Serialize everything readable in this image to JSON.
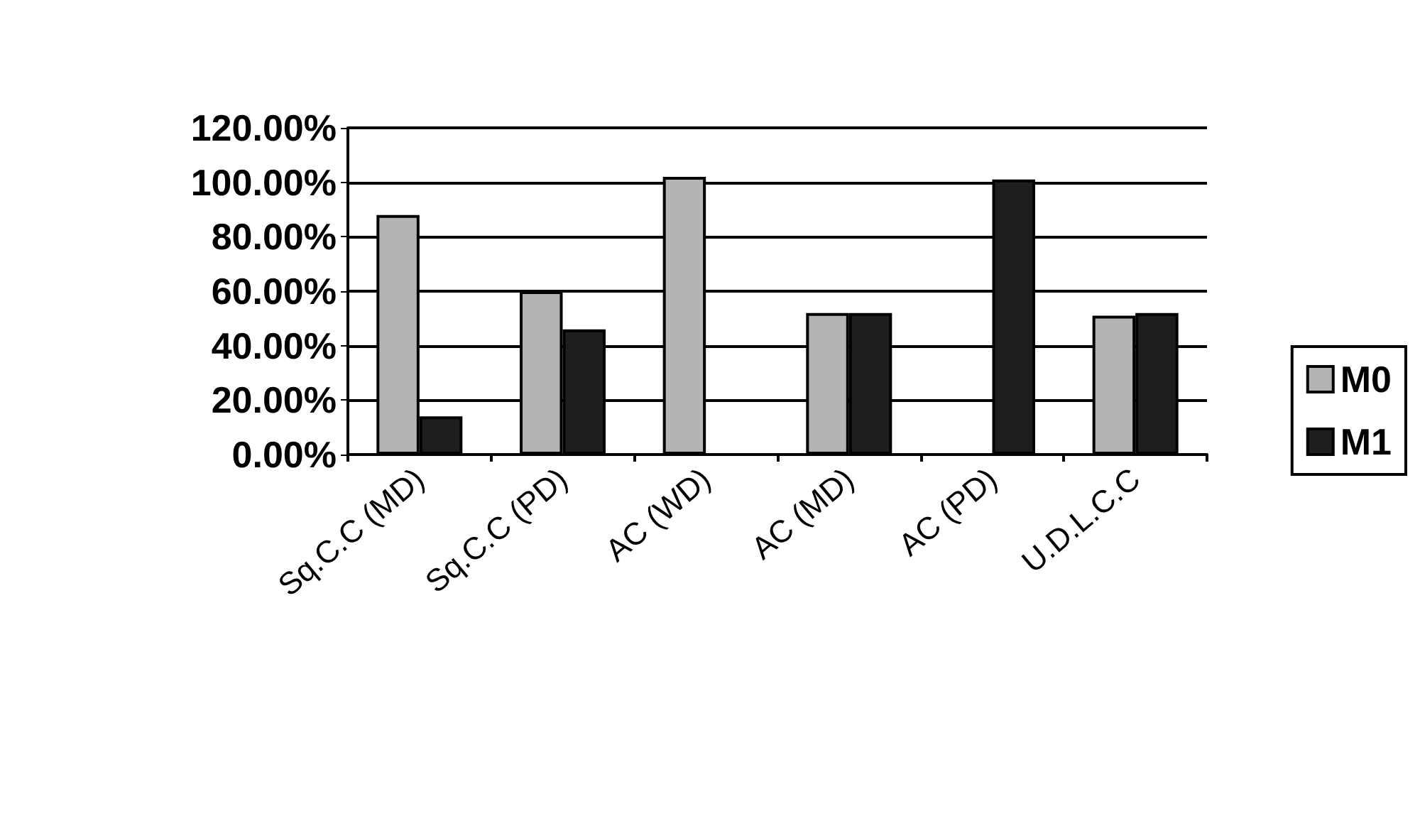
{
  "chart_data": {
    "type": "bar",
    "categories": [
      "Sq.C.C (MD)",
      "Sq.C.C (PD)",
      "AC (WD)",
      "AC (MD)",
      "AC (PD)",
      "U.D.L.C.C"
    ],
    "series": [
      {
        "name": "M0",
        "color": "#b4b4b4",
        "values": [
          88,
          60,
          102,
          52,
          null,
          51
        ]
      },
      {
        "name": "M1",
        "color": "#1e1e1e",
        "values": [
          14,
          46,
          null,
          52,
          101,
          52
        ]
      }
    ],
    "ylim": [
      0,
      120
    ],
    "yticks": [
      {
        "value": 0,
        "label": "0.00%"
      },
      {
        "value": 20,
        "label": "20.00%"
      },
      {
        "value": 40,
        "label": "40.00%"
      },
      {
        "value": 60,
        "label": "60.00%"
      },
      {
        "value": 80,
        "label": "80.00%"
      },
      {
        "value": 100,
        "label": "100.00%"
      },
      {
        "value": 120,
        "label": "120.00%"
      }
    ],
    "grid": "y",
    "legend": "right"
  }
}
